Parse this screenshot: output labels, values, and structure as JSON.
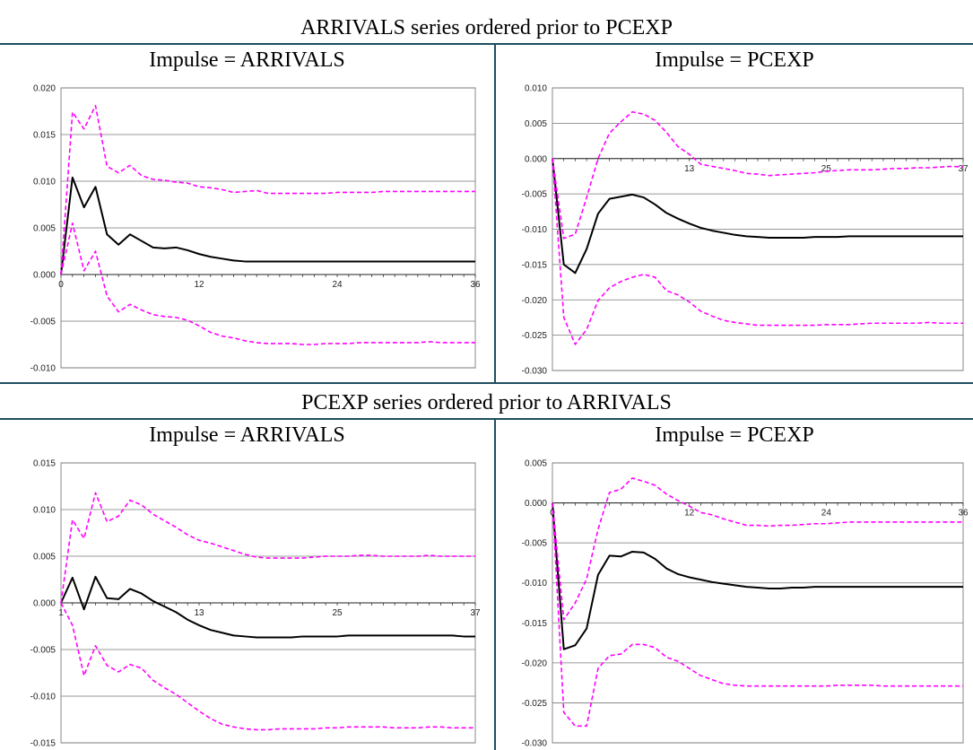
{
  "sections": [
    {
      "title": "ARRIVALS series ordered prior to PCEXP"
    },
    {
      "title": "PCEXP series ordered prior to ARRIVALS"
    }
  ],
  "chart_data": [
    {
      "type": "line",
      "title": "Impulse = ARRIVALS",
      "ylim": [
        -0.01,
        0.02
      ],
      "yticks": [
        -0.01,
        -0.005,
        0.0,
        0.005,
        0.01,
        0.015,
        0.02
      ],
      "ytick_labels": [
        "-0.010",
        "-0.005",
        "0.000",
        "0.005",
        "0.010",
        "0.015",
        "0.020"
      ],
      "xlim": [
        0,
        36
      ],
      "xticks": [
        0,
        12,
        24,
        36
      ],
      "xtick_labels": [
        "0",
        "12",
        "24",
        "36"
      ],
      "grid": true,
      "series": [
        {
          "style": "solid",
          "color": "#000000",
          "values": [
            0.0,
            0.0104,
            0.0072,
            0.0094,
            0.0043,
            0.0032,
            0.0043,
            0.0036,
            0.0029,
            0.0028,
            0.0029,
            0.0026,
            0.0022,
            0.0019,
            0.0017,
            0.0015,
            0.0014,
            0.0014,
            0.0014,
            0.0014,
            0.0014,
            0.0014,
            0.0014,
            0.0014,
            0.0014,
            0.0014,
            0.0014,
            0.0014,
            0.0014,
            0.0014,
            0.0014,
            0.0014,
            0.0014,
            0.0014,
            0.0014,
            0.0014,
            0.0014
          ]
        },
        {
          "style": "dashed",
          "color": "#ff00ff",
          "values": [
            0.0,
            0.0174,
            0.0156,
            0.0181,
            0.0116,
            0.0109,
            0.0117,
            0.0106,
            0.0102,
            0.0101,
            0.0099,
            0.0098,
            0.0094,
            0.0093,
            0.0091,
            0.0088,
            0.0089,
            0.009,
            0.0087,
            0.0087,
            0.0087,
            0.0087,
            0.0087,
            0.0087,
            0.0088,
            0.0088,
            0.0088,
            0.0088,
            0.0089,
            0.0089,
            0.0089,
            0.0089,
            0.0089,
            0.0089,
            0.0089,
            0.0089,
            0.0089
          ]
        },
        {
          "style": "dashed",
          "color": "#ff00ff",
          "values": [
            0.0,
            0.0055,
            0.0004,
            0.0025,
            -0.0023,
            -0.004,
            -0.0032,
            -0.0038,
            -0.0043,
            -0.0045,
            -0.0046,
            -0.0049,
            -0.0055,
            -0.0062,
            -0.0066,
            -0.0068,
            -0.0071,
            -0.0073,
            -0.0074,
            -0.0074,
            -0.0074,
            -0.0075,
            -0.0075,
            -0.0074,
            -0.0074,
            -0.0074,
            -0.0073,
            -0.0073,
            -0.0073,
            -0.0073,
            -0.0073,
            -0.0073,
            -0.0072,
            -0.0073,
            -0.0073,
            -0.0073,
            -0.0073
          ]
        }
      ]
    },
    {
      "type": "line",
      "title": "Impulse = PCEXP",
      "ylim": [
        -0.03,
        0.01
      ],
      "yticks": [
        -0.03,
        -0.025,
        -0.02,
        -0.015,
        -0.01,
        -0.005,
        0.0,
        0.005,
        0.01
      ],
      "ytick_labels": [
        "-0.030",
        "-0.025",
        "-0.020",
        "-0.015",
        "-0.010",
        "-0.005",
        "0.000",
        "0.005",
        "0.010"
      ],
      "xlim": [
        1,
        37
      ],
      "xticks": [
        1,
        13,
        25,
        37
      ],
      "xtick_labels": [
        "",
        "13",
        "25",
        "37"
      ],
      "grid": true,
      "series": [
        {
          "style": "solid",
          "color": "#000000",
          "values": [
            0.0,
            -0.015,
            -0.0162,
            -0.0128,
            -0.0078,
            -0.0057,
            -0.0054,
            -0.0051,
            -0.0055,
            -0.0065,
            -0.0077,
            -0.0085,
            -0.0092,
            -0.0098,
            -0.0102,
            -0.0105,
            -0.0108,
            -0.011,
            -0.0111,
            -0.0112,
            -0.0112,
            -0.0112,
            -0.0112,
            -0.0111,
            -0.0111,
            -0.0111,
            -0.011,
            -0.011,
            -0.011,
            -0.011,
            -0.011,
            -0.011,
            -0.011,
            -0.011,
            -0.011,
            -0.011,
            -0.011
          ]
        },
        {
          "style": "dashed",
          "color": "#ff00ff",
          "values": [
            0.0,
            -0.0113,
            -0.0107,
            -0.0055,
            0.0,
            0.0036,
            0.0052,
            0.0066,
            0.0063,
            0.0054,
            0.0037,
            0.0017,
            0.0006,
            -0.0008,
            -0.0011,
            -0.0014,
            -0.0017,
            -0.0021,
            -0.0022,
            -0.0024,
            -0.0023,
            -0.0022,
            -0.0021,
            -0.002,
            -0.0018,
            -0.0017,
            -0.0016,
            -0.0016,
            -0.0016,
            -0.0015,
            -0.0014,
            -0.0014,
            -0.0013,
            -0.0013,
            -0.0012,
            -0.0011,
            -0.0012
          ]
        },
        {
          "style": "dashed",
          "color": "#ff00ff",
          "values": [
            0.0,
            -0.0225,
            -0.0263,
            -0.0242,
            -0.0201,
            -0.0183,
            -0.0174,
            -0.0168,
            -0.0164,
            -0.0168,
            -0.0187,
            -0.0193,
            -0.0203,
            -0.0216,
            -0.0223,
            -0.0229,
            -0.0232,
            -0.0234,
            -0.0236,
            -0.0236,
            -0.0236,
            -0.0236,
            -0.0236,
            -0.0236,
            -0.0235,
            -0.0235,
            -0.0235,
            -0.0234,
            -0.0233,
            -0.0233,
            -0.0233,
            -0.0233,
            -0.0233,
            -0.0232,
            -0.0233,
            -0.0233,
            -0.0233
          ]
        }
      ]
    },
    {
      "type": "line",
      "title": "Impulse = ARRIVALS",
      "ylim": [
        -0.015,
        0.015
      ],
      "yticks": [
        -0.015,
        -0.01,
        -0.005,
        0.0,
        0.005,
        0.01,
        0.015
      ],
      "ytick_labels": [
        "-0.015",
        "-0.010",
        "-0.005",
        "0.000",
        "0.005",
        "0.010",
        "0.015"
      ],
      "xlim": [
        1,
        37
      ],
      "xticks": [
        1,
        13,
        25,
        37
      ],
      "xtick_labels": [
        "1",
        "13",
        "25",
        "37"
      ],
      "grid": true,
      "series": [
        {
          "style": "solid",
          "color": "#000000",
          "values": [
            0.0,
            0.0027,
            -0.0007,
            0.0028,
            0.0005,
            0.0004,
            0.0015,
            0.001,
            0.0002,
            -0.0004,
            -0.001,
            -0.0018,
            -0.0024,
            -0.0029,
            -0.0032,
            -0.0035,
            -0.0036,
            -0.0037,
            -0.0037,
            -0.0037,
            -0.0037,
            -0.0036,
            -0.0036,
            -0.0036,
            -0.0036,
            -0.0035,
            -0.0035,
            -0.0035,
            -0.0035,
            -0.0035,
            -0.0035,
            -0.0035,
            -0.0035,
            -0.0035,
            -0.0035,
            -0.0036,
            -0.0036
          ]
        },
        {
          "style": "dashed",
          "color": "#ff00ff",
          "values": [
            0.0,
            0.0089,
            0.0069,
            0.0118,
            0.0087,
            0.0093,
            0.011,
            0.0105,
            0.0095,
            0.0088,
            0.0081,
            0.0073,
            0.0067,
            0.0064,
            0.006,
            0.0056,
            0.0052,
            0.0049,
            0.0048,
            0.0048,
            0.0048,
            0.0048,
            0.0049,
            0.005,
            0.005,
            0.005,
            0.0051,
            0.0051,
            0.005,
            0.005,
            0.005,
            0.005,
            0.0051,
            0.005,
            0.005,
            0.005,
            0.005
          ]
        },
        {
          "style": "dashed",
          "color": "#ff00ff",
          "values": [
            0.0,
            -0.0024,
            -0.0078,
            -0.0046,
            -0.0067,
            -0.0074,
            -0.0066,
            -0.007,
            -0.0083,
            -0.0091,
            -0.0098,
            -0.0107,
            -0.0116,
            -0.0124,
            -0.013,
            -0.0133,
            -0.0135,
            -0.0136,
            -0.0136,
            -0.0135,
            -0.0135,
            -0.0135,
            -0.0135,
            -0.0134,
            -0.0134,
            -0.0133,
            -0.0133,
            -0.0133,
            -0.0133,
            -0.0134,
            -0.0134,
            -0.0134,
            -0.0133,
            -0.0133,
            -0.0134,
            -0.0134,
            -0.0134
          ]
        }
      ]
    },
    {
      "type": "line",
      "title": "Impulse = PCEXP",
      "ylim": [
        -0.03,
        0.005
      ],
      "yticks": [
        -0.03,
        -0.025,
        -0.02,
        -0.015,
        -0.01,
        -0.005,
        0.0,
        0.005
      ],
      "ytick_labels": [
        "-0.030",
        "-0.025",
        "-0.020",
        "-0.015",
        "-0.010",
        "-0.005",
        "0.000",
        "0.005"
      ],
      "xlim": [
        0,
        36
      ],
      "xticks": [
        0,
        12,
        24,
        36
      ],
      "xtick_labels": [
        "0",
        "12",
        "24",
        "36"
      ],
      "grid": true,
      "series": [
        {
          "style": "solid",
          "color": "#000000",
          "values": [
            0.0,
            -0.0183,
            -0.0178,
            -0.0157,
            -0.009,
            -0.0066,
            -0.0067,
            -0.0061,
            -0.0062,
            -0.007,
            -0.0082,
            -0.0089,
            -0.0093,
            -0.0096,
            -0.0099,
            -0.0101,
            -0.0103,
            -0.0105,
            -0.0106,
            -0.0107,
            -0.0107,
            -0.0106,
            -0.0106,
            -0.0105,
            -0.0105,
            -0.0105,
            -0.0105,
            -0.0105,
            -0.0105,
            -0.0105,
            -0.0105,
            -0.0105,
            -0.0105,
            -0.0105,
            -0.0105,
            -0.0105,
            -0.0105
          ]
        },
        {
          "style": "dashed",
          "color": "#ff00ff",
          "values": [
            0.0,
            -0.0146,
            -0.0125,
            -0.0095,
            -0.0033,
            0.0013,
            0.0017,
            0.0031,
            0.0027,
            0.0022,
            0.0011,
            0.0003,
            -0.0004,
            -0.0012,
            -0.0015,
            -0.002,
            -0.0024,
            -0.0028,
            -0.0028,
            -0.0029,
            -0.0028,
            -0.0028,
            -0.0027,
            -0.0026,
            -0.0026,
            -0.0025,
            -0.0024,
            -0.0024,
            -0.0024,
            -0.0024,
            -0.0024,
            -0.0024,
            -0.0024,
            -0.0024,
            -0.0024,
            -0.0024,
            -0.0024
          ]
        },
        {
          "style": "dashed",
          "color": "#ff00ff",
          "values": [
            0.0,
            -0.0262,
            -0.0279,
            -0.0279,
            -0.0207,
            -0.0191,
            -0.0189,
            -0.0177,
            -0.0177,
            -0.0181,
            -0.0193,
            -0.0198,
            -0.0207,
            -0.0216,
            -0.0221,
            -0.0226,
            -0.0228,
            -0.0229,
            -0.0229,
            -0.0229,
            -0.0229,
            -0.0229,
            -0.0229,
            -0.0229,
            -0.0229,
            -0.0228,
            -0.0228,
            -0.0228,
            -0.0228,
            -0.0229,
            -0.0229,
            -0.0229,
            -0.0229,
            -0.0229,
            -0.0229,
            -0.0229,
            -0.0229
          ]
        }
      ]
    }
  ]
}
